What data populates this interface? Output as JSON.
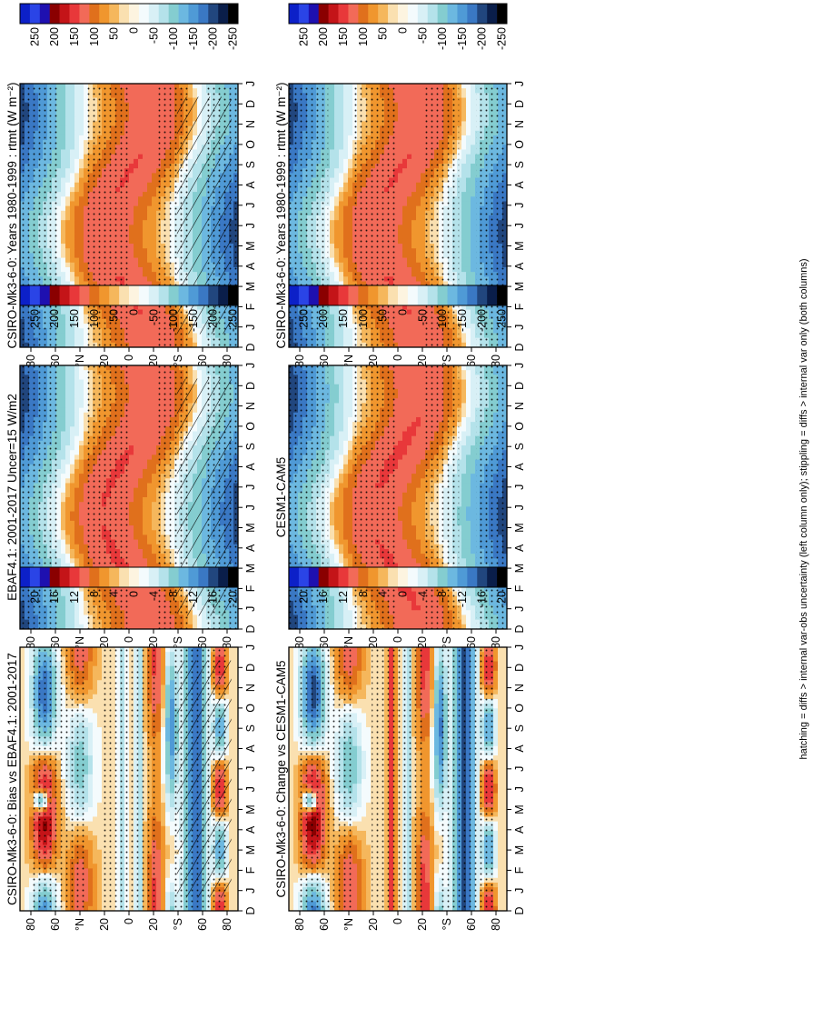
{
  "footnote": "hatching = diffs > internal var-obs uncertainty (left column only); stippling = diffs > internal var only (both columns)",
  "chart_data": [
    {
      "type": "heatmap",
      "title": "CSIRO-Mk3-6-0: Years 1980-1999 : rtmt (W m⁻²)",
      "x": [
        "D",
        "J",
        "F",
        "M",
        "A",
        "M",
        "J",
        "J",
        "A",
        "S",
        "O",
        "N",
        "D",
        "J"
      ],
      "y": [
        "80",
        "60",
        "°N",
        "20",
        "0",
        "20",
        "°S",
        "60",
        "80"
      ],
      "colorbar": [
        "250",
        "200",
        "150",
        "100",
        "50",
        "0",
        "-50",
        "-100",
        "-150",
        "-200",
        "-250"
      ],
      "pattern": "climatology",
      "hatching": true,
      "stippling": true
    },
    {
      "type": "heatmap",
      "title": "CSIRO-Mk3-6-0: Years 1980-1999 : rtmt (W m⁻²)",
      "x": [
        "D",
        "J",
        "F",
        "M",
        "A",
        "M",
        "J",
        "J",
        "A",
        "S",
        "O",
        "N",
        "D",
        "J"
      ],
      "y": [
        "80",
        "60",
        "°N",
        "20",
        "0",
        "20",
        "°S",
        "60",
        "80"
      ],
      "colorbar": [
        "250",
        "200",
        "150",
        "100",
        "50",
        "0",
        "-50",
        "-100",
        "-150",
        "-200",
        "-250"
      ],
      "pattern": "climatology",
      "hatching": false,
      "stippling": true
    },
    {
      "type": "heatmap",
      "title": "EBAF4.1: 2001-2017 Uncer=15 W/m2",
      "x": [
        "D",
        "J",
        "F",
        "M",
        "A",
        "M",
        "J",
        "J",
        "A",
        "S",
        "O",
        "N",
        "D",
        "J"
      ],
      "y": [
        "80",
        "60",
        "°N",
        "20",
        "0",
        "20",
        "°S",
        "60",
        "80"
      ],
      "colorbar": [
        "250",
        "200",
        "150",
        "100",
        "50",
        "0",
        "-50",
        "-100",
        "-150",
        "-200",
        "-250"
      ],
      "pattern": "climatology",
      "hatching": true,
      "stippling": true
    },
    {
      "type": "heatmap",
      "title": "CESM1-CAM5",
      "x": [
        "D",
        "J",
        "F",
        "M",
        "A",
        "M",
        "J",
        "J",
        "A",
        "S",
        "O",
        "N",
        "D",
        "J"
      ],
      "y": [
        "80",
        "60",
        "°N",
        "20",
        "0",
        "20",
        "°S",
        "60",
        "80"
      ],
      "colorbar": [
        "250",
        "200",
        "150",
        "100",
        "50",
        "0",
        "-50",
        "-100",
        "-150",
        "-200",
        "-250"
      ],
      "pattern": "climatology",
      "hatching": false,
      "stippling": true
    },
    {
      "type": "heatmap",
      "title": "CSIRO-Mk3-6-0: Bias vs EBAF4.1: 2001-2017",
      "x": [
        "D",
        "J",
        "F",
        "M",
        "A",
        "M",
        "J",
        "J",
        "A",
        "S",
        "O",
        "N",
        "D",
        "J"
      ],
      "y": [
        "80",
        "60",
        "°N",
        "20",
        "0",
        "20",
        "°S",
        "60",
        "80"
      ],
      "colorbar": [
        "20",
        "16",
        "12",
        "8",
        "4",
        "0",
        "-4",
        "-8",
        "-12",
        "-16",
        "-20"
      ],
      "pattern": "bias",
      "hatching": true,
      "stippling": true
    },
    {
      "type": "heatmap",
      "title": "CSIRO-Mk3-6-0: Change vs CESM1-CAM5",
      "x": [
        "D",
        "J",
        "F",
        "M",
        "A",
        "M",
        "J",
        "J",
        "A",
        "S",
        "O",
        "N",
        "D",
        "J"
      ],
      "y": [
        "80",
        "60",
        "°N",
        "20",
        "0",
        "20",
        "°S",
        "60",
        "80"
      ],
      "colorbar": [
        "20",
        "16",
        "12",
        "8",
        "4",
        "0",
        "-4",
        "-8",
        "-12",
        "-16",
        "-20"
      ],
      "pattern": "change",
      "hatching": false,
      "stippling": true
    }
  ],
  "palette": [
    "#0c20c8",
    "#2a44e6",
    "#1e10b0",
    "#8a0000",
    "#c41418",
    "#e8383a",
    "#f26a58",
    "#e0701c",
    "#f0962e",
    "#f5b75c",
    "#fae0b0",
    "#fdf4e0",
    "#f4fbfd",
    "#d8f0f6",
    "#b4e2ea",
    "#84cdd0",
    "#6cb8e0",
    "#4f9ad6",
    "#3a78c4",
    "#21467e",
    "#0a1e4a",
    "#000000"
  ]
}
